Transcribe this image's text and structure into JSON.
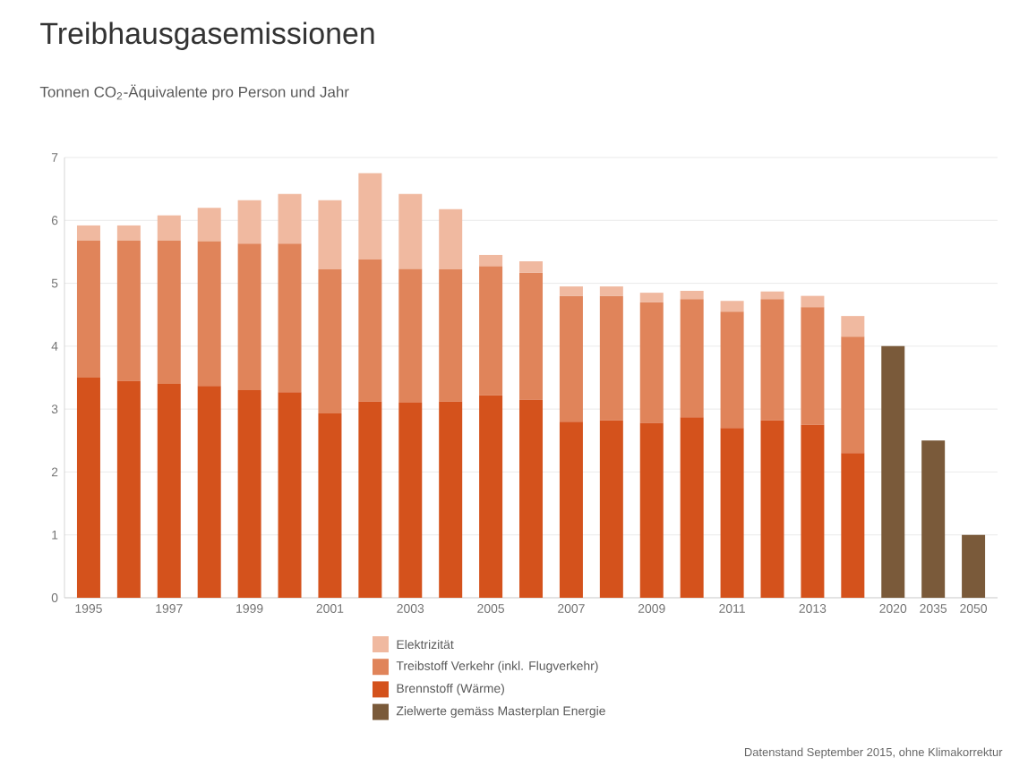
{
  "chart_data": {
    "type": "bar",
    "title": "Treibhausgasemissionen",
    "subtitle": "Tonnen CO$_{2}$-Äquivalente pro Person und Jahr",
    "stacked": true,
    "grid": "y",
    "legend": "bottom",
    "categories": [
      "1995",
      null,
      "1997",
      null,
      "1999",
      null,
      "2001",
      null,
      "2003",
      null,
      "2005",
      null,
      "2007",
      null,
      "2009",
      null,
      "2011",
      null,
      "2013",
      null,
      "2020",
      "2035",
      "2050"
    ],
    "ylim": [
      0,
      7
    ],
    "yticks": [
      0,
      1,
      2,
      3,
      4,
      5,
      6,
      7
    ],
    "series": [
      {
        "name": "Zielwerte gemäss Masterplan Energie",
        "color": "#7a5a3a",
        "values": [
          null,
          null,
          null,
          null,
          null,
          null,
          null,
          null,
          null,
          null,
          null,
          null,
          null,
          null,
          null,
          null,
          null,
          null,
          null,
          null,
          4,
          2.5,
          1
        ]
      },
      {
        "name": "Brennstoff (Wärme)",
        "color": "#d4521c",
        "values": [
          3.5,
          3.45,
          3.4,
          3.37,
          3.3,
          3.27,
          2.93,
          3.12,
          3.1,
          3.12,
          3.22,
          3.15,
          2.8,
          2.82,
          2.78,
          2.87,
          2.7,
          2.82,
          2.75,
          2.3,
          null,
          null,
          null
        ]
      },
      {
        "name": "Treibstoff Verkehr (inkl. Flugverkehr)",
        "color": "#e0845a",
        "values": [
          2.18,
          2.23,
          2.28,
          2.3,
          2.33,
          2.36,
          2.29,
          2.26,
          2.13,
          2.1,
          2.05,
          2.02,
          2,
          1.98,
          1.92,
          1.88,
          1.85,
          1.93,
          1.87,
          1.85,
          null,
          null,
          null
        ]
      },
      {
        "name": "Elektrizität",
        "color": "#f0b9a0",
        "values": [
          0.24,
          0.24,
          0.4,
          0.53,
          0.69,
          0.79,
          1.1,
          1.37,
          1.19,
          0.96,
          0.18,
          0.18,
          0.15,
          0.15,
          0.15,
          0.13,
          0.17,
          0.12,
          0.18,
          0.33,
          null,
          null,
          null
        ]
      }
    ],
    "annotations": [
      "Datenstand September 2015, ohne Klimakorrektur"
    ]
  }
}
